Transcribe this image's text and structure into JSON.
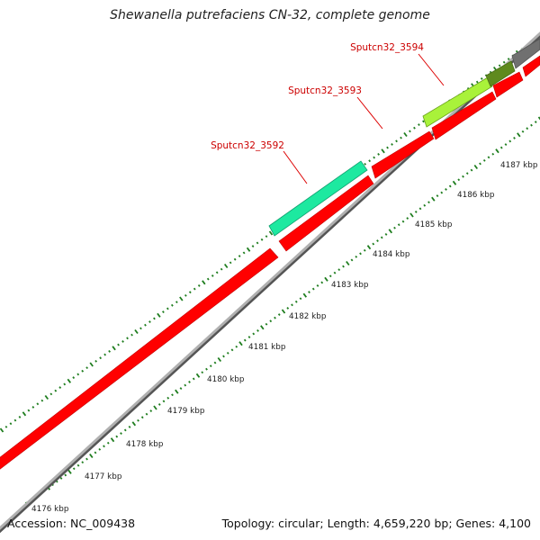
{
  "title": "Shewanella putrefaciens CN-32, complete genome",
  "accession": "Accession: NC_009438",
  "summary": "Topology: circular; Length: 4,659,220 bp; Genes: 4,100",
  "colors": {
    "forward_cds": "#ff0000",
    "reverse_cds": "#ff0000",
    "gene_teal": "#1de9a0",
    "gene_lime": "#9be829",
    "gene_olive": "#5f8a1e",
    "gene_gray": "#707070",
    "backbone": "#a9a9a9",
    "tick_green": "#1e7d1e",
    "label_red": "#cc0000"
  },
  "scale_labels": [
    "4176 kbp",
    "4177 kbp",
    "4178 kbp",
    "4179 kbp",
    "4180 kbp",
    "4181 kbp",
    "4182 kbp",
    "4183 kbp",
    "4184 kbp",
    "4185 kbp",
    "4186 kbp",
    "4187 kbp"
  ],
  "gene_labels": [
    "Sputcn32_3592",
    "Sputcn32_3593",
    "Sputcn32_3594"
  ]
}
